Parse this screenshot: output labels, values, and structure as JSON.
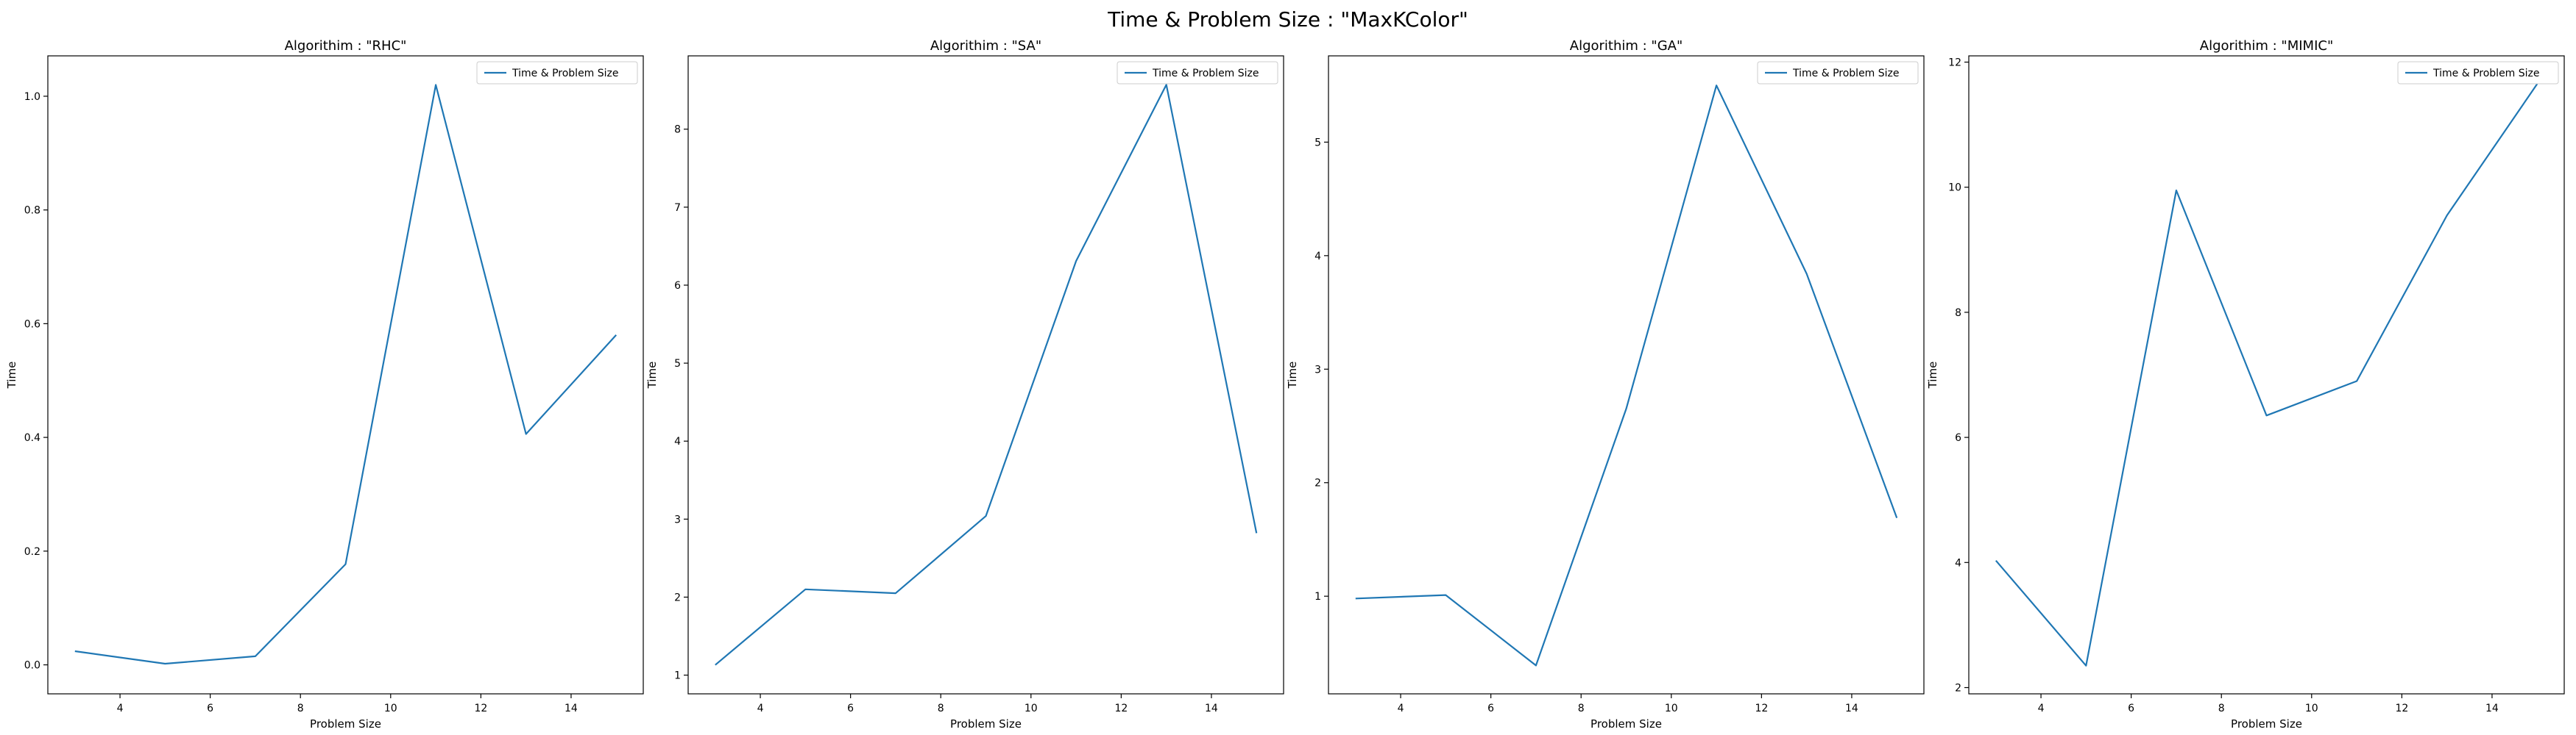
{
  "figure": {
    "title": "Time & Problem Size : \"MaxKColor\""
  },
  "colors": {
    "line": "#1f77b4",
    "axes": "#000000",
    "background": "#ffffff"
  },
  "chart_data": [
    {
      "type": "line",
      "title": "Algorithim : \"RHC\"",
      "xlabel": "Problem Size",
      "ylabel": "Time",
      "legend": "top-right",
      "grid": false,
      "xlim": [
        2.4,
        15.6
      ],
      "ylim": [
        -0.051,
        1.071
      ],
      "xticks": [
        4,
        6,
        8,
        10,
        12,
        14
      ],
      "yticks": [
        0.0,
        0.2,
        0.4,
        0.6,
        0.8,
        1.0
      ],
      "ytick_labels": [
        "0.0",
        "0.2",
        "0.4",
        "0.6",
        "0.8",
        "1.0"
      ],
      "series": [
        {
          "name": "Time & Problem Size",
          "x": [
            3,
            5,
            7,
            9,
            11,
            13,
            15
          ],
          "y": [
            0.024,
            0.002,
            0.015,
            0.177,
            1.02,
            0.406,
            0.58
          ]
        }
      ]
    },
    {
      "type": "line",
      "title": "Algorithim : \"SA\"",
      "xlabel": "Problem Size",
      "ylabel": "Time",
      "legend": "top-right",
      "grid": false,
      "xlim": [
        2.4,
        15.6
      ],
      "ylim": [
        0.76,
        8.94
      ],
      "xticks": [
        4,
        6,
        8,
        10,
        12,
        14
      ],
      "yticks": [
        1,
        2,
        3,
        4,
        5,
        6,
        7,
        8
      ],
      "ytick_labels": [
        "1",
        "2",
        "3",
        "4",
        "5",
        "6",
        "7",
        "8"
      ],
      "series": [
        {
          "name": "Time & Problem Size",
          "x": [
            3,
            5,
            7,
            9,
            11,
            13,
            15
          ],
          "y": [
            1.13,
            2.1,
            2.05,
            3.04,
            6.31,
            8.57,
            2.82
          ]
        }
      ]
    },
    {
      "type": "line",
      "title": "Algorithim : \"GA\"",
      "xlabel": "Problem Size",
      "ylabel": "Time",
      "legend": "top-right",
      "grid": false,
      "xlim": [
        2.4,
        15.6
      ],
      "ylim": [
        0.14,
        5.76
      ],
      "xticks": [
        4,
        6,
        8,
        10,
        12,
        14
      ],
      "yticks": [
        1,
        2,
        3,
        4,
        5
      ],
      "ytick_labels": [
        "1",
        "2",
        "3",
        "4",
        "5"
      ],
      "series": [
        {
          "name": "Time & Problem Size",
          "x": [
            3,
            5,
            7,
            9,
            11,
            13,
            15
          ],
          "y": [
            0.98,
            1.01,
            0.39,
            2.65,
            5.5,
            3.84,
            1.69
          ]
        }
      ]
    },
    {
      "type": "line",
      "title": "Algorithim : \"MIMIC\"",
      "xlabel": "Problem Size",
      "ylabel": "Time",
      "legend": "top-right",
      "grid": false,
      "xlim": [
        2.4,
        15.6
      ],
      "ylim": [
        1.9,
        12.1
      ],
      "xticks": [
        4,
        6,
        8,
        10,
        12,
        14
      ],
      "yticks": [
        2,
        4,
        6,
        8,
        10,
        12
      ],
      "ytick_labels": [
        "2",
        "4",
        "6",
        "8",
        "10",
        "12"
      ],
      "series": [
        {
          "name": "Time & Problem Size",
          "x": [
            3,
            5,
            7,
            9,
            11,
            13,
            15
          ],
          "y": [
            4.03,
            2.35,
            9.95,
            6.35,
            6.9,
            9.55,
            11.65
          ]
        }
      ]
    }
  ]
}
